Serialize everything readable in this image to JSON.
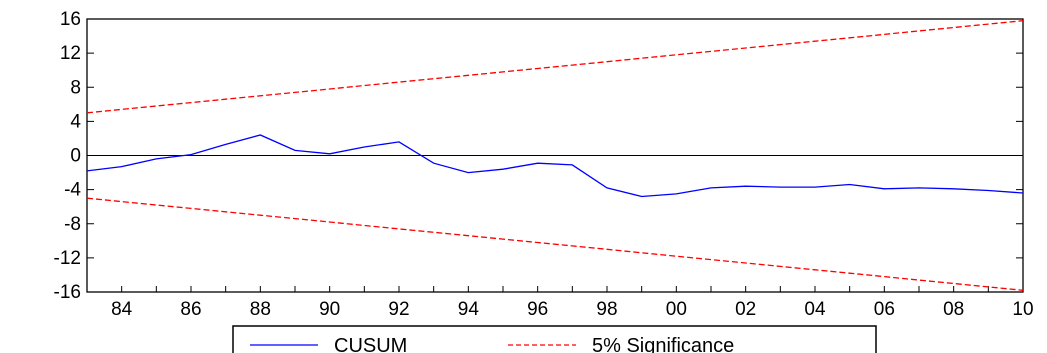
{
  "chart_data": {
    "type": "line",
    "title": "",
    "xlabel": "",
    "ylabel": "",
    "x": [
      1983,
      1984,
      1985,
      1986,
      1987,
      1988,
      1989,
      1990,
      1991,
      1992,
      1993,
      1994,
      1995,
      1996,
      1997,
      1998,
      1999,
      2000,
      2001,
      2002,
      2003,
      2004,
      2005,
      2006,
      2007,
      2008,
      2009,
      2010
    ],
    "xlim": [
      1983,
      2010
    ],
    "ylim": [
      -16,
      16
    ],
    "y_ticks": [
      16,
      12,
      8,
      4,
      0,
      -4,
      -8,
      -12,
      -16
    ],
    "x_tick_labels": [
      "84",
      "86",
      "88",
      "90",
      "92",
      "94",
      "96",
      "98",
      "00",
      "02",
      "04",
      "06",
      "08",
      "10"
    ],
    "x_tick_years": [
      1984,
      1986,
      1988,
      1990,
      1992,
      1994,
      1996,
      1998,
      2000,
      2002,
      2004,
      2006,
      2008,
      2010
    ],
    "grid": false,
    "zero_line": true,
    "legend_position": "bottom-center",
    "series": [
      {
        "name": "CUSUM",
        "color": "#0000ff",
        "style": "solid",
        "values": [
          -1.8,
          -1.3,
          -0.4,
          0.1,
          1.3,
          2.4,
          0.6,
          0.2,
          1.0,
          1.6,
          -0.9,
          -2.0,
          -1.6,
          -0.9,
          -1.1,
          -3.8,
          -4.8,
          -4.5,
          -3.8,
          -3.6,
          -3.7,
          -3.7,
          -3.4,
          -3.9,
          -3.8,
          -3.9,
          -4.1,
          -4.4
        ]
      },
      {
        "name": "5% Significance",
        "color": "#ff0000",
        "style": "dashed",
        "values": [
          5.0,
          5.4,
          5.8,
          6.2,
          6.6,
          7.0,
          7.4,
          7.8,
          8.2,
          8.6,
          9.0,
          9.4,
          9.8,
          10.2,
          10.6,
          11.0,
          11.4,
          11.8,
          12.2,
          12.6,
          13.0,
          13.4,
          13.8,
          14.2,
          14.6,
          15.0,
          15.4,
          15.8
        ]
      },
      {
        "name": "5% Significance",
        "color": "#ff0000",
        "style": "dashed",
        "values": [
          -5.0,
          -5.4,
          -5.8,
          -6.2,
          -6.6,
          -7.0,
          -7.4,
          -7.8,
          -8.2,
          -8.6,
          -9.0,
          -9.4,
          -9.8,
          -10.2,
          -10.6,
          -11.0,
          -11.4,
          -11.8,
          -12.2,
          -12.6,
          -13.0,
          -13.4,
          -13.8,
          -14.2,
          -14.6,
          -15.0,
          -15.4,
          -15.8
        ]
      }
    ]
  },
  "legend": {
    "cusum_label": "CUSUM",
    "significance_label": "5% Significance"
  }
}
